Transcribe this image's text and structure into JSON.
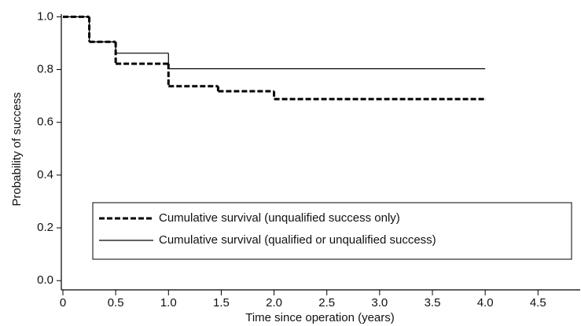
{
  "chart_data": {
    "type": "step",
    "xlabel": "Time since operation (years)",
    "ylabel": "Probability of success",
    "xlim": [
      0,
      4.9
    ],
    "ylim": [
      -0.035,
      1.01
    ],
    "xticks": [
      0,
      0.5,
      {
        "value": 1,
        "label": "1.0"
      },
      1.5,
      {
        "value": 2,
        "label": "2.0"
      },
      2.5,
      {
        "value": 3,
        "label": "3.0"
      },
      3.5,
      {
        "value": 4,
        "label": "4.0"
      },
      4.5
    ],
    "yticks": [
      {
        "value": 0,
        "label": "0.0"
      },
      0.2,
      0.4,
      0.6,
      0.8,
      {
        "value": 1,
        "label": "1.0"
      }
    ],
    "legend": "lower center",
    "series": [
      {
        "name": "Cumulative survival (unqualified success only)",
        "color": "#000000",
        "dash": true,
        "x": [
          0,
          0.25,
          0.5,
          1.0,
          1.47,
          2.0,
          4.0
        ],
        "values": [
          1.0,
          0.905,
          0.822,
          0.737,
          0.718,
          0.688,
          0.688
        ]
      },
      {
        "name": "Cumulative survival (qualified or unqualified success)",
        "color": "#000000",
        "dash": false,
        "x": [
          0,
          0.25,
          0.5,
          1.0,
          4.0
        ],
        "values": [
          1.0,
          0.905,
          0.862,
          0.803,
          0.803
        ]
      }
    ]
  }
}
